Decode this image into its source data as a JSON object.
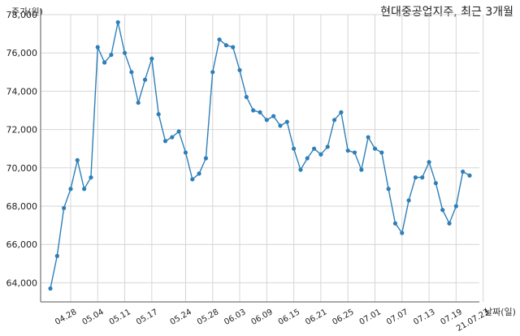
{
  "chart_data": {
    "type": "line",
    "title": "현대중공업지주, 최근 3개월",
    "ylabel": "주가(원)",
    "xlabel": "날짜(일)",
    "ylim": [
      63000,
      78000
    ],
    "yticks": [
      64000,
      66000,
      68000,
      70000,
      72000,
      74000,
      76000,
      78000
    ],
    "ytick_labels": [
      "64,000",
      "66,000",
      "68,000",
      "70,000",
      "72,000",
      "74,000",
      "76,000",
      "78,000"
    ],
    "xtick_labels": [
      "04.28",
      "05.04",
      "05.11",
      "05.17",
      "05.24",
      "05.28",
      "06.03",
      "06.09",
      "06.15",
      "06.21",
      "06.25",
      "07.01",
      "07.07",
      "07.13",
      "07.19",
      "21.07.23"
    ],
    "xtick_indices": [
      3,
      7,
      11,
      15,
      20,
      24,
      28,
      32,
      36,
      40,
      44,
      48,
      52,
      56,
      60,
      64
    ],
    "grid": true,
    "color": "#2e7fb8",
    "series": [
      {
        "name": "",
        "values": [
          63700,
          65400,
          67900,
          68900,
          70400,
          68900,
          69500,
          76300,
          75500,
          75900,
          77600,
          76000,
          75000,
          73400,
          74600,
          75700,
          72800,
          71400,
          71600,
          71900,
          70800,
          69400,
          69700,
          70500,
          75000,
          76700,
          76400,
          76300,
          75100,
          73700,
          73000,
          72900,
          72500,
          72700,
          72200,
          72400,
          71000,
          69900,
          70500,
          71000,
          70700,
          71100,
          72500,
          72900,
          70900,
          70800,
          69900,
          71600,
          71000,
          70800,
          68900,
          67100,
          66600,
          68300,
          69500,
          69500,
          70300,
          69200,
          67800,
          67100,
          68000,
          69800,
          69600
        ]
      }
    ]
  }
}
